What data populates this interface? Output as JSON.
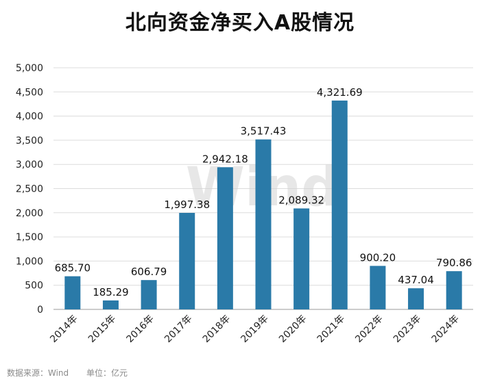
{
  "chart_data": {
    "type": "bar",
    "title": "北向资金净买入A股情况",
    "categories": [
      "2014年",
      "2015年",
      "2016年",
      "2017年",
      "2018年",
      "2019年",
      "2020年",
      "2021年",
      "2022年",
      "2023年",
      "2024年"
    ],
    "values": [
      685.7,
      185.29,
      606.79,
      1997.38,
      2942.18,
      3517.43,
      2089.32,
      4321.69,
      900.2,
      437.04,
      790.86
    ],
    "value_labels": [
      "685.70",
      "185.29",
      "606.79",
      "1,997.38",
      "2,942.18",
      "3,517.43",
      "2,089.32",
      "4,321.69",
      "900.20",
      "437.04",
      "790.86"
    ],
    "ylim": [
      0,
      5000
    ],
    "yticks": [
      0,
      500,
      1000,
      1500,
      2000,
      2500,
      3000,
      3500,
      4000,
      4500,
      5000
    ],
    "ytick_labels": [
      "0",
      "500",
      "1,000",
      "1,500",
      "2,000",
      "2,500",
      "3,000",
      "3,500",
      "4,000",
      "4,500",
      "5,000"
    ],
    "grid": true,
    "bar_color": "#2a7aa8",
    "watermark": "Wind"
  },
  "footer": {
    "source": "数据来源：Wind",
    "unit": "单位：亿元"
  }
}
